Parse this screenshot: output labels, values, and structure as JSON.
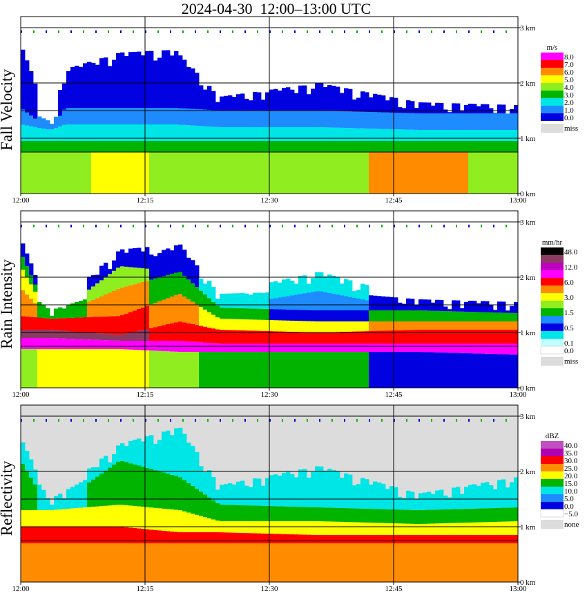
{
  "title": "2024-04-30  12:00–13:00 UTC",
  "colors": {
    "missing": "#dcdcdc",
    "background": "#ffffff"
  },
  "x_axis": {
    "ticks": [
      "12:00",
      "12:15",
      "12:30",
      "12:45",
      "13:00"
    ]
  },
  "chart_data": [
    {
      "type": "heatmap",
      "ylabel": "Fall Velocity",
      "x_range": [
        "12:00",
        "13:00"
      ],
      "y_range_km": [
        0,
        3
      ],
      "y_ticks": [
        "0 km",
        "1 km",
        "2 km",
        "3 km"
      ],
      "legend_unit": "m/s",
      "legend": [
        {
          "label": "8.0",
          "color": "#ff00ff"
        },
        {
          "label": "7.0",
          "color": "#ff0000"
        },
        {
          "label": "6.0",
          "color": "#ff8c00"
        },
        {
          "label": "5.0",
          "color": "#ffff00"
        },
        {
          "label": "4.0",
          "color": "#90ee20"
        },
        {
          "label": "3.0",
          "color": "#00b400"
        },
        {
          "label": "2.0",
          "color": "#00e5e5"
        },
        {
          "label": "1.0",
          "color": "#1e8cff"
        },
        {
          "label": "0.0",
          "color": "#0000e0"
        }
      ],
      "legend_missing": "miss",
      "profile": [
        {
          "x": 0.0,
          "top": 2.7,
          "layers": [
            [
              0.0,
              0.75,
              "#90ee20"
            ],
            [
              0.75,
              0.95,
              "#00b400"
            ],
            [
              0.95,
              1.25,
              "#00e5e5"
            ],
            [
              1.25,
              1.55,
              "#1e8cff"
            ],
            [
              1.55,
              2.7,
              "#0000e0"
            ]
          ]
        },
        {
          "x": 0.06,
          "top": 1.3,
          "layers": [
            [
              0.0,
              0.75,
              "#90ee20"
            ],
            [
              0.75,
              0.95,
              "#00b400"
            ],
            [
              0.95,
              1.15,
              "#00e5e5"
            ],
            [
              1.15,
              1.3,
              "#1e8cff"
            ]
          ]
        },
        {
          "x": 0.09,
          "top": 2.25,
          "layers": [
            [
              0.0,
              0.75,
              "#90ee20"
            ],
            [
              0.75,
              0.95,
              "#00b400"
            ],
            [
              0.95,
              1.25,
              "#00e5e5"
            ],
            [
              1.25,
              1.55,
              "#1e8cff"
            ],
            [
              1.55,
              2.25,
              "#0000e0"
            ]
          ]
        },
        {
          "x": 0.2,
          "top": 2.55,
          "layers": [
            [
              0.0,
              0.75,
              "#ffff00"
            ],
            [
              0.75,
              0.95,
              "#00b400"
            ],
            [
              0.95,
              1.25,
              "#00e5e5"
            ],
            [
              1.25,
              1.55,
              "#1e8cff"
            ],
            [
              1.55,
              2.55,
              "#0000e0"
            ]
          ]
        },
        {
          "x": 0.31,
          "top": 2.6,
          "layers": [
            [
              0.0,
              0.75,
              "#90ee20"
            ],
            [
              0.75,
              0.95,
              "#00b400"
            ],
            [
              0.95,
              1.25,
              "#00e5e5"
            ],
            [
              1.25,
              1.55,
              "#1e8cff"
            ],
            [
              1.55,
              2.6,
              "#0000e0"
            ]
          ]
        },
        {
          "x": 0.4,
          "top": 1.75,
          "layers": [
            [
              0.0,
              0.75,
              "#90ee20"
            ],
            [
              0.75,
              0.95,
              "#00b400"
            ],
            [
              0.95,
              1.2,
              "#00e5e5"
            ],
            [
              1.2,
              1.5,
              "#1e8cff"
            ],
            [
              1.5,
              1.75,
              "#0000e0"
            ]
          ]
        },
        {
          "x": 0.6,
          "top": 2.0,
          "layers": [
            [
              0.0,
              0.75,
              "#90ee20"
            ],
            [
              0.75,
              0.95,
              "#00b400"
            ],
            [
              0.95,
              1.2,
              "#00e5e5"
            ],
            [
              1.2,
              1.5,
              "#1e8cff"
            ],
            [
              1.5,
              2.0,
              "#0000e0"
            ]
          ]
        },
        {
          "x": 0.8,
          "top": 1.65,
          "layers": [
            [
              0.0,
              0.75,
              "#ff8c00"
            ],
            [
              0.75,
              0.95,
              "#00b400"
            ],
            [
              0.95,
              1.15,
              "#00e5e5"
            ],
            [
              1.15,
              1.45,
              "#1e8cff"
            ],
            [
              1.45,
              1.65,
              "#0000e0"
            ]
          ]
        },
        {
          "x": 1.0,
          "top": 1.6,
          "layers": [
            [
              0.0,
              0.75,
              "#90ee20"
            ],
            [
              0.75,
              0.95,
              "#00b400"
            ],
            [
              0.95,
              1.15,
              "#00e5e5"
            ],
            [
              1.15,
              1.45,
              "#1e8cff"
            ],
            [
              1.45,
              1.6,
              "#0000e0"
            ]
          ]
        }
      ]
    },
    {
      "type": "heatmap",
      "ylabel": "Rain Intensity",
      "x_range": [
        "12:00",
        "13:00"
      ],
      "y_range_km": [
        0,
        3
      ],
      "y_ticks": [
        "0 km",
        "1 km",
        "2 km",
        "3 km"
      ],
      "legend_unit": "mm/hr",
      "legend": [
        {
          "label": "48.0",
          "color": "#000000"
        },
        {
          "label": "",
          "color": "#8b3a62"
        },
        {
          "label": "12.0",
          "color": "#c000c0"
        },
        {
          "label": "",
          "color": "#ff00ff"
        },
        {
          "label": "6.0",
          "color": "#ff0000"
        },
        {
          "label": "",
          "color": "#ff8c00"
        },
        {
          "label": "3.0",
          "color": "#ffff00"
        },
        {
          "label": "",
          "color": "#90ee20"
        },
        {
          "label": "1.5",
          "color": "#00b400"
        },
        {
          "label": "",
          "color": "#1e8cff"
        },
        {
          "label": "0.5",
          "color": "#0000e0"
        },
        {
          "label": "",
          "color": "#00e5e5"
        },
        {
          "label": "0.1",
          "color": "#bfffff"
        },
        {
          "label": "0.0",
          "color": "#ffffff"
        }
      ],
      "legend_missing": "miss",
      "profile": [
        {
          "x": 0.0,
          "top": 2.7,
          "layers": [
            [
              0.0,
              0.7,
              "#90ee20"
            ],
            [
              0.7,
              0.9,
              "#ff00ff"
            ],
            [
              0.9,
              1.05,
              "#8b3a62"
            ],
            [
              1.05,
              1.3,
              "#ff0000"
            ],
            [
              1.3,
              1.8,
              "#ff8c00"
            ],
            [
              1.8,
              2.2,
              "#ffff00"
            ],
            [
              2.2,
              2.45,
              "#00b400"
            ],
            [
              2.45,
              2.7,
              "#0000e0"
            ]
          ]
        },
        {
          "x": 0.06,
          "top": 1.4,
          "layers": [
            [
              0.0,
              0.7,
              "#ffff00"
            ],
            [
              0.7,
              0.9,
              "#ff00ff"
            ],
            [
              0.9,
              1.05,
              "#8b3a62"
            ],
            [
              1.05,
              1.25,
              "#ff0000"
            ],
            [
              1.25,
              1.4,
              "#00b400"
            ]
          ]
        },
        {
          "x": 0.2,
          "top": 2.5,
          "layers": [
            [
              0.0,
              0.7,
              "#ffff00"
            ],
            [
              0.7,
              0.85,
              "#ff00ff"
            ],
            [
              0.85,
              0.95,
              "#8b3a62"
            ],
            [
              0.95,
              1.3,
              "#ff0000"
            ],
            [
              1.3,
              1.8,
              "#ff8c00"
            ],
            [
              1.8,
              2.2,
              "#90ee20"
            ],
            [
              2.2,
              2.5,
              "#0000e0"
            ]
          ]
        },
        {
          "x": 0.32,
          "top": 2.6,
          "layers": [
            [
              0.0,
              0.65,
              "#90ee20"
            ],
            [
              0.65,
              0.85,
              "#ff00ff"
            ],
            [
              0.85,
              1.2,
              "#ff0000"
            ],
            [
              1.2,
              1.7,
              "#ff8c00"
            ],
            [
              1.7,
              2.1,
              "#00b400"
            ],
            [
              2.1,
              2.6,
              "#0000e0"
            ]
          ]
        },
        {
          "x": 0.4,
          "top": 1.7,
          "layers": [
            [
              0.0,
              0.65,
              "#00b400"
            ],
            [
              0.65,
              0.8,
              "#ff00ff"
            ],
            [
              0.8,
              1.05,
              "#ff0000"
            ],
            [
              1.05,
              1.25,
              "#ffff00"
            ],
            [
              1.25,
              1.45,
              "#00b400"
            ],
            [
              1.45,
              1.7,
              "#00e5e5"
            ]
          ]
        },
        {
          "x": 0.6,
          "top": 2.1,
          "layers": [
            [
              0.0,
              0.65,
              "#00b400"
            ],
            [
              0.65,
              0.8,
              "#ff00ff"
            ],
            [
              0.8,
              1.0,
              "#ff0000"
            ],
            [
              1.0,
              1.2,
              "#ffff00"
            ],
            [
              1.2,
              1.4,
              "#0000e0"
            ],
            [
              1.4,
              1.75,
              "#1e8cff"
            ],
            [
              1.75,
              2.1,
              "#00e5e5"
            ]
          ]
        },
        {
          "x": 0.8,
          "top": 1.6,
          "layers": [
            [
              0.0,
              0.65,
              "#0000e0"
            ],
            [
              0.65,
              0.8,
              "#ff00ff"
            ],
            [
              0.8,
              1.05,
              "#ff0000"
            ],
            [
              1.05,
              1.2,
              "#ff8c00"
            ],
            [
              1.2,
              1.4,
              "#00b400"
            ],
            [
              1.4,
              1.6,
              "#0000e0"
            ]
          ]
        },
        {
          "x": 1.0,
          "top": 1.55,
          "layers": [
            [
              0.0,
              0.6,
              "#0000e0"
            ],
            [
              0.6,
              0.8,
              "#ff00ff"
            ],
            [
              0.8,
              1.05,
              "#ff0000"
            ],
            [
              1.05,
              1.2,
              "#ff8c00"
            ],
            [
              1.2,
              1.35,
              "#00b400"
            ],
            [
              1.35,
              1.55,
              "#0000e0"
            ]
          ]
        }
      ]
    },
    {
      "type": "heatmap",
      "ylabel": "Reflectivity",
      "x_range": [
        "12:00",
        "13:00"
      ],
      "y_range_km": [
        0,
        3
      ],
      "y_ticks": [
        "0 km",
        "1 km",
        "2 km",
        "3 km"
      ],
      "legend_unit": "dBZ",
      "legend": [
        {
          "label": "40.0",
          "color": "#c050c0"
        },
        {
          "label": "35.0",
          "color": "#b000b0"
        },
        {
          "label": "30.0",
          "color": "#ff0000"
        },
        {
          "label": "25.0",
          "color": "#ff8c00"
        },
        {
          "label": "20.0",
          "color": "#ffff00"
        },
        {
          "label": "15.0",
          "color": "#00b400"
        },
        {
          "label": "10.0",
          "color": "#00e5e5"
        },
        {
          "label": "5.0",
          "color": "#1e8cff"
        },
        {
          "label": "0.0",
          "color": "#0000e0"
        },
        {
          "label": "−5.0",
          "color": "#ffffff"
        }
      ],
      "legend_missing": "none",
      "profile": [
        {
          "x": 0.0,
          "top": 2.6,
          "layers": [
            [
              0.0,
              0.7,
              "#ff8c00"
            ],
            [
              0.7,
              1.0,
              "#ff0000"
            ],
            [
              1.0,
              1.3,
              "#ffff00"
            ],
            [
              1.3,
              2.2,
              "#00b400"
            ],
            [
              2.2,
              2.6,
              "#00e5e5"
            ]
          ]
        },
        {
          "x": 0.06,
          "top": 1.5,
          "layers": [
            [
              0.0,
              0.7,
              "#ff8c00"
            ],
            [
              0.7,
              1.0,
              "#ff0000"
            ],
            [
              1.0,
              1.3,
              "#ffff00"
            ],
            [
              1.3,
              1.5,
              "#00e5e5"
            ]
          ]
        },
        {
          "x": 0.2,
          "top": 2.5,
          "layers": [
            [
              0.0,
              0.7,
              "#ff8c00"
            ],
            [
              0.7,
              1.0,
              "#ff0000"
            ],
            [
              1.0,
              1.4,
              "#ffff00"
            ],
            [
              1.4,
              2.2,
              "#00b400"
            ],
            [
              2.2,
              2.5,
              "#00e5e5"
            ]
          ]
        },
        {
          "x": 0.32,
          "top": 2.8,
          "layers": [
            [
              0.0,
              0.7,
              "#ff8c00"
            ],
            [
              0.7,
              0.9,
              "#ff0000"
            ],
            [
              0.9,
              1.3,
              "#ffff00"
            ],
            [
              1.3,
              1.9,
              "#00b400"
            ],
            [
              1.9,
              2.8,
              "#00e5e5"
            ]
          ]
        },
        {
          "x": 0.4,
          "top": 1.75,
          "layers": [
            [
              0.0,
              0.7,
              "#ff8c00"
            ],
            [
              0.7,
              0.9,
              "#ff0000"
            ],
            [
              0.9,
              1.1,
              "#ffff00"
            ],
            [
              1.1,
              1.4,
              "#00b400"
            ],
            [
              1.4,
              1.75,
              "#00e5e5"
            ]
          ]
        },
        {
          "x": 0.6,
          "top": 2.1,
          "layers": [
            [
              0.0,
              0.7,
              "#ff8c00"
            ],
            [
              0.7,
              0.85,
              "#ff0000"
            ],
            [
              0.85,
              1.1,
              "#ffff00"
            ],
            [
              1.1,
              1.35,
              "#00b400"
            ],
            [
              1.35,
              2.1,
              "#00e5e5"
            ]
          ]
        },
        {
          "x": 0.8,
          "top": 1.6,
          "layers": [
            [
              0.0,
              0.7,
              "#ff8c00"
            ],
            [
              0.7,
              0.85,
              "#ff0000"
            ],
            [
              0.85,
              1.05,
              "#ffff00"
            ],
            [
              1.05,
              1.3,
              "#00b400"
            ],
            [
              1.3,
              1.6,
              "#00e5e5"
            ]
          ]
        },
        {
          "x": 1.0,
          "top": 1.9,
          "layers": [
            [
              0.0,
              0.7,
              "#ff8c00"
            ],
            [
              0.7,
              0.85,
              "#ff0000"
            ],
            [
              0.85,
              1.1,
              "#ffff00"
            ],
            [
              1.1,
              1.35,
              "#00b400"
            ],
            [
              1.35,
              1.9,
              "#00e5e5"
            ]
          ]
        }
      ]
    }
  ]
}
